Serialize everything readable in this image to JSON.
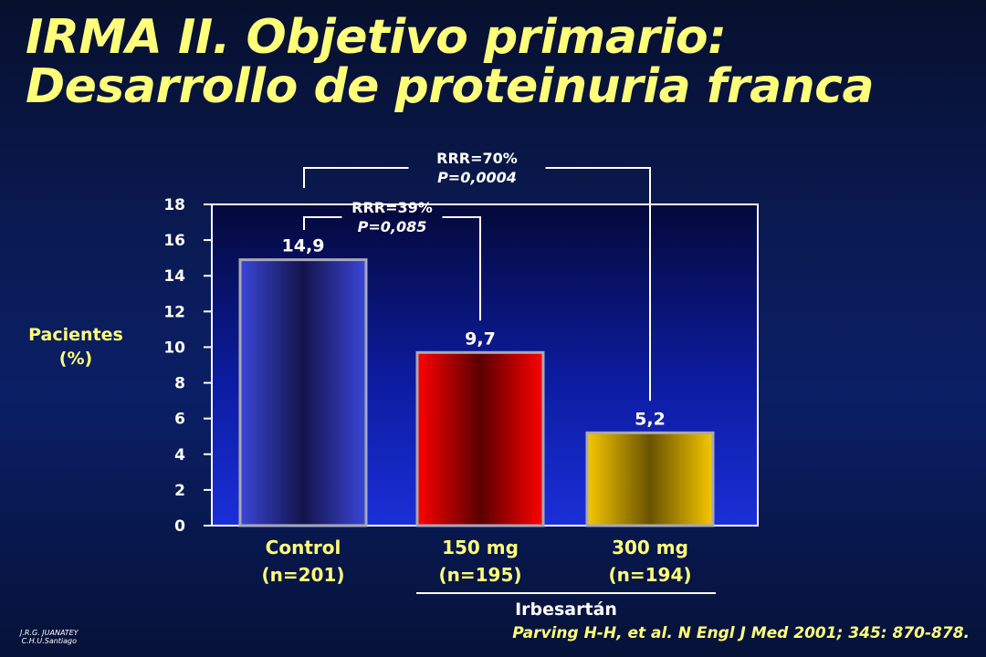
{
  "title": {
    "line1": "IRMA II. Objetivo primario:",
    "line2": "Desarrollo de proteinuria franca"
  },
  "chart_data": {
    "type": "bar",
    "categories": [
      {
        "line1": "Control",
        "line2": "(n=201)"
      },
      {
        "line1": "150 mg",
        "line2": "(n=195)"
      },
      {
        "line1": "300 mg",
        "line2": "(n=194)"
      }
    ],
    "values": [
      14.9,
      9.7,
      5.2
    ],
    "value_labels": [
      "14,9",
      "9,7",
      "5,2"
    ],
    "ylabel": {
      "line1": "Pacientes",
      "line2": "(%)"
    },
    "ylim": [
      0,
      18
    ],
    "yticks": [
      0,
      2,
      4,
      6,
      8,
      10,
      12,
      14,
      16,
      18
    ],
    "grid": false,
    "group_label": "Irbesartán",
    "annotations": [
      {
        "from": 0,
        "to": 2,
        "rrr": "RRR=70%",
        "p": "P=0,0004"
      },
      {
        "from": 0,
        "to": 1,
        "rrr": "RRR=39%",
        "p": "P=0,085"
      }
    ],
    "colors": {
      "plot_background": "#1a2fd0",
      "bar_control": "#3a46cc",
      "bar_150": "#ff0000",
      "bar_300": "#f0c000",
      "label_yellow": "#ffff7a"
    }
  },
  "credit": {
    "line1": "J.R.G. JUANATEY",
    "line2": "C.H.U.Santiago"
  },
  "citation": "Parving H-H, et al.  N Engl J Med 2001; 345: 870-878."
}
